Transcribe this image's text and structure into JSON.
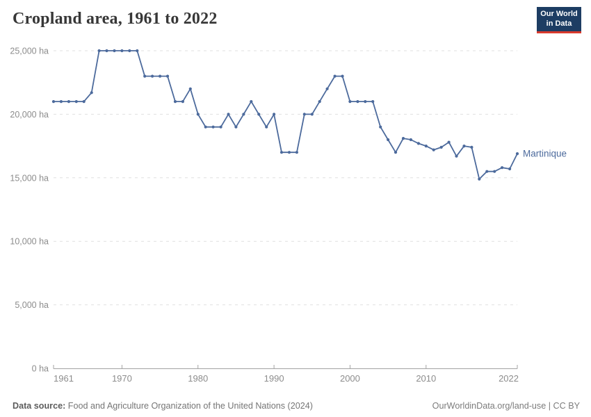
{
  "header": {
    "title": "Cropland area, 1961 to 2022",
    "logo_line1": "Our World",
    "logo_line2": "in Data"
  },
  "chart_data": {
    "type": "line",
    "title": "Cropland area, 1961 to 2022",
    "xlabel": "",
    "ylabel": "",
    "unit": "ha",
    "grid": "horizontal-dashed",
    "legend_position": "inline-right-of-last-point",
    "xlim": [
      1961,
      2022
    ],
    "ylim": [
      0,
      25000
    ],
    "x_tick_labels": [
      1961,
      1970,
      1980,
      1990,
      2000,
      2010,
      2022
    ],
    "y_ticks": [
      0,
      5000,
      10000,
      15000,
      20000,
      25000
    ],
    "series": [
      {
        "name": "Martinique",
        "x": [
          1961,
          1962,
          1963,
          1964,
          1965,
          1966,
          1967,
          1968,
          1969,
          1970,
          1971,
          1972,
          1973,
          1974,
          1975,
          1976,
          1977,
          1978,
          1979,
          1980,
          1981,
          1982,
          1983,
          1984,
          1985,
          1986,
          1987,
          1988,
          1989,
          1990,
          1991,
          1992,
          1993,
          1994,
          1995,
          1996,
          1997,
          1998,
          1999,
          2000,
          2001,
          2002,
          2003,
          2004,
          2005,
          2006,
          2007,
          2008,
          2009,
          2010,
          2011,
          2012,
          2013,
          2014,
          2015,
          2016,
          2017,
          2018,
          2019,
          2020,
          2021,
          2022
        ],
        "values": [
          21000,
          21000,
          21000,
          21000,
          21000,
          21700,
          25000,
          25000,
          25000,
          25000,
          25000,
          25000,
          23000,
          23000,
          23000,
          23000,
          21000,
          21000,
          22000,
          20000,
          19000,
          19000,
          19000,
          20000,
          19000,
          20000,
          21000,
          20000,
          19000,
          20000,
          17000,
          17000,
          17000,
          20000,
          20000,
          21000,
          22000,
          23000,
          23000,
          21000,
          21000,
          21000,
          21000,
          19000,
          18000,
          17000,
          18100,
          18000,
          17700,
          17500,
          17200,
          17400,
          17800,
          16700,
          17500,
          17400,
          14900,
          15500,
          15500,
          15800,
          15700,
          16900
        ]
      }
    ]
  },
  "footer": {
    "source_label": "Data source:",
    "source_text": " Food and Agriculture Organization of the United Nations (2024)",
    "link_text": "OurWorldinData.org/land-use | CC BY"
  },
  "colors": {
    "line": "#4C6A9C",
    "series_label": "#4C6A9C",
    "grid": "#e0e0e0",
    "axis": "#a3a3a3",
    "tick_text": "#8c8c8c",
    "title_text": "#373737",
    "footer_text": "#757575",
    "logo_bg": "#1d3d63",
    "logo_red": "#d93a2d"
  }
}
